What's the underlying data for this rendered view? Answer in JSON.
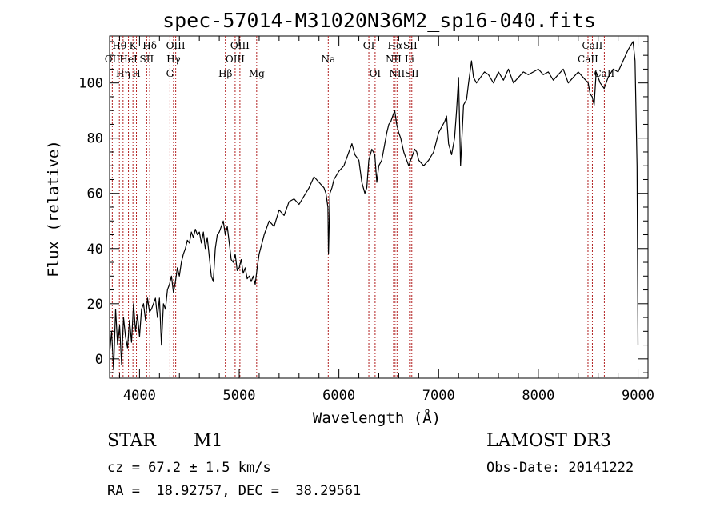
{
  "chart_data": {
    "type": "line",
    "title": "spec-57014-M31020N36M2_sp16-040.fits",
    "xlabel": "Wavelength (Å)",
    "ylabel": "Flux (relative)",
    "xlim": [
      3700,
      9100
    ],
    "ylim": [
      -7,
      117
    ],
    "xticks": [
      4000,
      5000,
      6000,
      7000,
      8000,
      9000
    ],
    "xtick_labels": [
      "4000",
      "5000",
      "6000",
      "7000",
      "8000",
      "9000"
    ],
    "yticks": [
      0,
      20,
      40,
      60,
      80,
      100
    ],
    "ytick_labels": [
      "0",
      "20",
      "40",
      "60",
      "80",
      "100"
    ],
    "grid": false,
    "line_color": "#000000",
    "marker_color": "#b22222",
    "series": [
      {
        "name": "flux",
        "x": [
          3700,
          3720,
          3740,
          3760,
          3780,
          3800,
          3820,
          3840,
          3860,
          3880,
          3900,
          3920,
          3940,
          3960,
          3980,
          4000,
          4020,
          4040,
          4060,
          4080,
          4100,
          4120,
          4140,
          4160,
          4180,
          4200,
          4220,
          4240,
          4260,
          4280,
          4300,
          4320,
          4340,
          4360,
          4380,
          4400,
          4420,
          4440,
          4460,
          4480,
          4500,
          4520,
          4540,
          4560,
          4580,
          4600,
          4620,
          4640,
          4660,
          4680,
          4700,
          4720,
          4740,
          4760,
          4780,
          4800,
          4820,
          4840,
          4860,
          4880,
          4900,
          4920,
          4940,
          4960,
          4980,
          5000,
          5020,
          5040,
          5060,
          5080,
          5100,
          5120,
          5140,
          5160,
          5180,
          5200,
          5250,
          5300,
          5350,
          5400,
          5450,
          5500,
          5550,
          5600,
          5650,
          5700,
          5750,
          5800,
          5850,
          5870,
          5890,
          5895,
          5910,
          5930,
          5950,
          6000,
          6050,
          6100,
          6130,
          6160,
          6200,
          6230,
          6260,
          6280,
          6300,
          6330,
          6360,
          6380,
          6400,
          6430,
          6460,
          6480,
          6500,
          6520,
          6540,
          6560,
          6580,
          6600,
          6620,
          6650,
          6680,
          6700,
          6720,
          6740,
          6760,
          6780,
          6800,
          6850,
          6900,
          6950,
          7000,
          7030,
          7060,
          7080,
          7100,
          7130,
          7160,
          7180,
          7200,
          7220,
          7250,
          7280,
          7300,
          7330,
          7350,
          7380,
          7420,
          7460,
          7500,
          7550,
          7600,
          7650,
          7700,
          7750,
          7800,
          7850,
          7900,
          7950,
          8000,
          8050,
          8100,
          8150,
          8200,
          8250,
          8300,
          8350,
          8400,
          8450,
          8500,
          8520,
          8540,
          8560,
          8580,
          8620,
          8660,
          8700,
          8750,
          8800,
          8850,
          8900,
          8950,
          8970,
          8990,
          9000
        ],
        "y": [
          2,
          10,
          -4,
          18,
          5,
          12,
          -2,
          15,
          8,
          4,
          14,
          6,
          20,
          10,
          16,
          8,
          18,
          20,
          14,
          22,
          17,
          18,
          20,
          22,
          15,
          22,
          5,
          20,
          18,
          25,
          27,
          30,
          24,
          28,
          33,
          30,
          35,
          38,
          40,
          43,
          42,
          46,
          44,
          47,
          45,
          46,
          42,
          46,
          40,
          44,
          37,
          30,
          28,
          40,
          45,
          46,
          48,
          50,
          45,
          48,
          42,
          36,
          35,
          38,
          32,
          33,
          36,
          31,
          33,
          29,
          30,
          28,
          30,
          27,
          33,
          38,
          45,
          50,
          48,
          54,
          52,
          57,
          58,
          56,
          59,
          62,
          66,
          64,
          62,
          60,
          55,
          38,
          60,
          62,
          65,
          68,
          70,
          75,
          78,
          74,
          72,
          64,
          60,
          62,
          72,
          76,
          74,
          64,
          70,
          72,
          78,
          82,
          85,
          86,
          88,
          90,
          85,
          82,
          80,
          75,
          72,
          70,
          72,
          74,
          76,
          75,
          72,
          70,
          72,
          75,
          82,
          84,
          86,
          88,
          78,
          74,
          80,
          90,
          102,
          70,
          92,
          94,
          100,
          108,
          102,
          100,
          102,
          104,
          103,
          100,
          104,
          101,
          105,
          100,
          102,
          104,
          103,
          104,
          105,
          103,
          104,
          101,
          103,
          105,
          100,
          102,
          104,
          102,
          100,
          96,
          95,
          92,
          104,
          100,
          98,
          102,
          105,
          104,
          108,
          112,
          115,
          108,
          70,
          5
        ]
      }
    ],
    "lines": [
      {
        "name": "OII",
        "x": 3727,
        "row": 2,
        "col": 1,
        "side": "center"
      },
      {
        "name": "Hθ",
        "x": 3798,
        "row": 1,
        "col": 2,
        "side": "center"
      },
      {
        "name": "Hη",
        "x": 3835,
        "row": 3,
        "col": 1,
        "side": "center"
      },
      {
        "name": "HeI",
        "x": 3889,
        "row": 2,
        "col": 2,
        "side": "center"
      },
      {
        "name": "K",
        "x": 3934,
        "row": 1,
        "col": 2,
        "side": "center"
      },
      {
        "name": "H",
        "x": 3969,
        "row": 3,
        "col": 2,
        "side": "center"
      },
      {
        "name": "SII",
        "x": 4072,
        "row": 2,
        "col": 2,
        "side": "center"
      },
      {
        "name": "Hδ",
        "x": 4102,
        "row": 1,
        "col": 2,
        "side": "center"
      },
      {
        "name": "G",
        "x": 4305,
        "row": 3,
        "col": 2,
        "side": "center"
      },
      {
        "name": "Hγ",
        "x": 4341,
        "row": 2,
        "col": 2,
        "side": "center"
      },
      {
        "name": "OIII",
        "x": 4363,
        "row": 1,
        "col": 2,
        "side": "center"
      },
      {
        "name": "Hβ",
        "x": 4861,
        "row": 3,
        "col": 2,
        "side": "center"
      },
      {
        "name": "OIII",
        "x": 4959,
        "row": 2,
        "col": 2,
        "side": "center"
      },
      {
        "name": "OIII",
        "x": 5007,
        "row": 1,
        "col": 2,
        "side": "center"
      },
      {
        "name": "Mg",
        "x": 5175,
        "row": 3,
        "col": 2,
        "side": "center"
      },
      {
        "name": "Na",
        "x": 5893,
        "row": 2,
        "col": 2,
        "side": "center"
      },
      {
        "name": "OI",
        "x": 6300,
        "row": 1,
        "col": 2,
        "side": "center"
      },
      {
        "name": "OI",
        "x": 6363,
        "row": 3,
        "col": 2,
        "side": "center"
      },
      {
        "name": "NII",
        "x": 6548,
        "row": 2,
        "col": 2,
        "side": "center"
      },
      {
        "name": "Hα",
        "x": 6563,
        "row": 1,
        "col": 2,
        "side": "center"
      },
      {
        "name": "NII",
        "x": 6583,
        "row": 3,
        "col": 2,
        "side": "center"
      },
      {
        "name": "Li",
        "x": 6708,
        "row": 2,
        "col": 2,
        "side": "center"
      },
      {
        "name": "SII",
        "x": 6716,
        "row": 1,
        "col": 2,
        "side": "center"
      },
      {
        "name": "SII",
        "x": 6731,
        "row": 3,
        "col": 2,
        "side": "center"
      },
      {
        "name": "CaII",
        "x": 8498,
        "row": 2,
        "col": 2,
        "side": "center"
      },
      {
        "name": "CaII",
        "x": 8542,
        "row": 1,
        "col": 2,
        "side": "center"
      },
      {
        "name": "CaII",
        "x": 8662,
        "row": 3,
        "col": 2,
        "side": "center"
      }
    ]
  },
  "info": {
    "class": "STAR",
    "subclass": "M1",
    "survey": "LAMOST DR3",
    "redshift": "cz = 67.2 ± 1.5 km/s",
    "obs_date": "Obs-Date: 20141222",
    "coords": "RA =  18.92757, DEC =  38.29561"
  }
}
